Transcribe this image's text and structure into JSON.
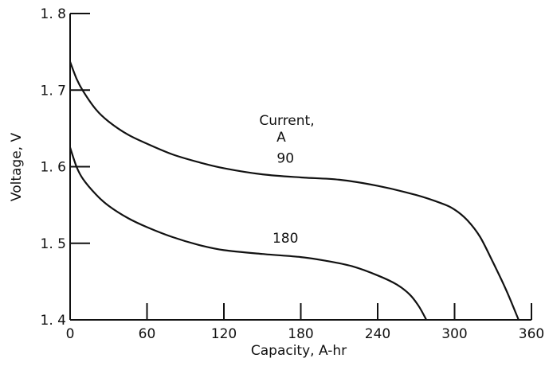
{
  "chart_data": {
    "type": "line",
    "xlabel": "Capacity, A-hr",
    "ylabel": "Voltage, V",
    "xlim": [
      0,
      360
    ],
    "ylim": [
      1.4,
      1.8
    ],
    "x_ticks": [
      0,
      60,
      120,
      180,
      240,
      300,
      360
    ],
    "x_tick_labels": [
      "0",
      "60",
      "120",
      "180",
      "240",
      "300",
      "360"
    ],
    "y_ticks": [
      1.4,
      1.5,
      1.6,
      1.7,
      1.8
    ],
    "y_tick_labels": [
      "1. 4",
      "1. 5",
      "1. 6",
      "1. 7",
      "1. 8"
    ],
    "grid": false,
    "legend_title": [
      "Current,",
      "A"
    ],
    "series": [
      {
        "name": "90",
        "x": [
          0,
          5,
          10,
          20,
          30,
          45,
          60,
          80,
          100,
          120,
          150,
          180,
          210,
          240,
          270,
          290,
          300,
          310,
          320,
          330,
          340,
          350
        ],
        "y": [
          1.737,
          1.715,
          1.699,
          1.675,
          1.659,
          1.642,
          1.63,
          1.616,
          1.606,
          1.598,
          1.59,
          1.586,
          1.583,
          1.575,
          1.563,
          1.552,
          1.544,
          1.53,
          1.508,
          1.475,
          1.44,
          1.4
        ]
      },
      {
        "name": "180",
        "x": [
          0,
          5,
          10,
          20,
          30,
          45,
          60,
          80,
          100,
          120,
          150,
          180,
          200,
          220,
          240,
          255,
          265,
          272,
          278
        ],
        "y": [
          1.625,
          1.6,
          1.584,
          1.564,
          1.549,
          1.533,
          1.521,
          1.508,
          1.498,
          1.491,
          1.486,
          1.482,
          1.477,
          1.47,
          1.458,
          1.446,
          1.433,
          1.418,
          1.4
        ]
      }
    ],
    "series_label_positions": [
      {
        "name": "90",
        "x": 168,
        "y": 1.605
      },
      {
        "name": "180",
        "x": 168,
        "y": 1.501
      }
    ]
  }
}
